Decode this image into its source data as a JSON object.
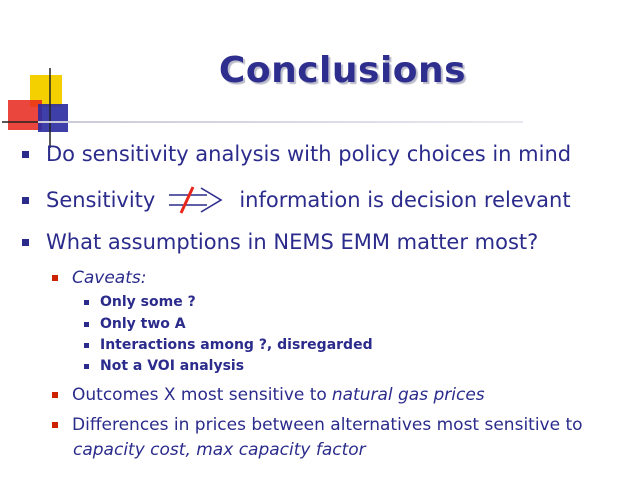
{
  "title": "Conclusions",
  "colors": {
    "text": "#2b2b8c",
    "title": "#2e2e8f",
    "bullet_red": "#cc2200",
    "logo_yellow": "#f5d000",
    "logo_red": "#e8261c",
    "logo_blue": "#2a2aa0"
  },
  "bullets": [
    {
      "text": "Do sensitivity analysis with policy choices in mind"
    },
    {
      "text_before": "Sensitivity",
      "text_after": "information is decision relevant",
      "icon": "crossed-implies-arrow-icon"
    },
    {
      "text": "What assumptions in NEMS EMM matter most?"
    }
  ],
  "sub_bullets": [
    {
      "text": "Caveats:"
    },
    {
      "text_before": "Outcomes X most sensitive to ",
      "emphasis": "natural gas prices"
    },
    {
      "text_before": "Differences in prices between alternatives most sensitive to",
      "emphasis": "capacity cost, max capacity factor"
    }
  ],
  "caveats": [
    "Only some ?",
    "Only two A",
    "Interactions among ?, disregarded",
    "Not a VOI analysis"
  ]
}
